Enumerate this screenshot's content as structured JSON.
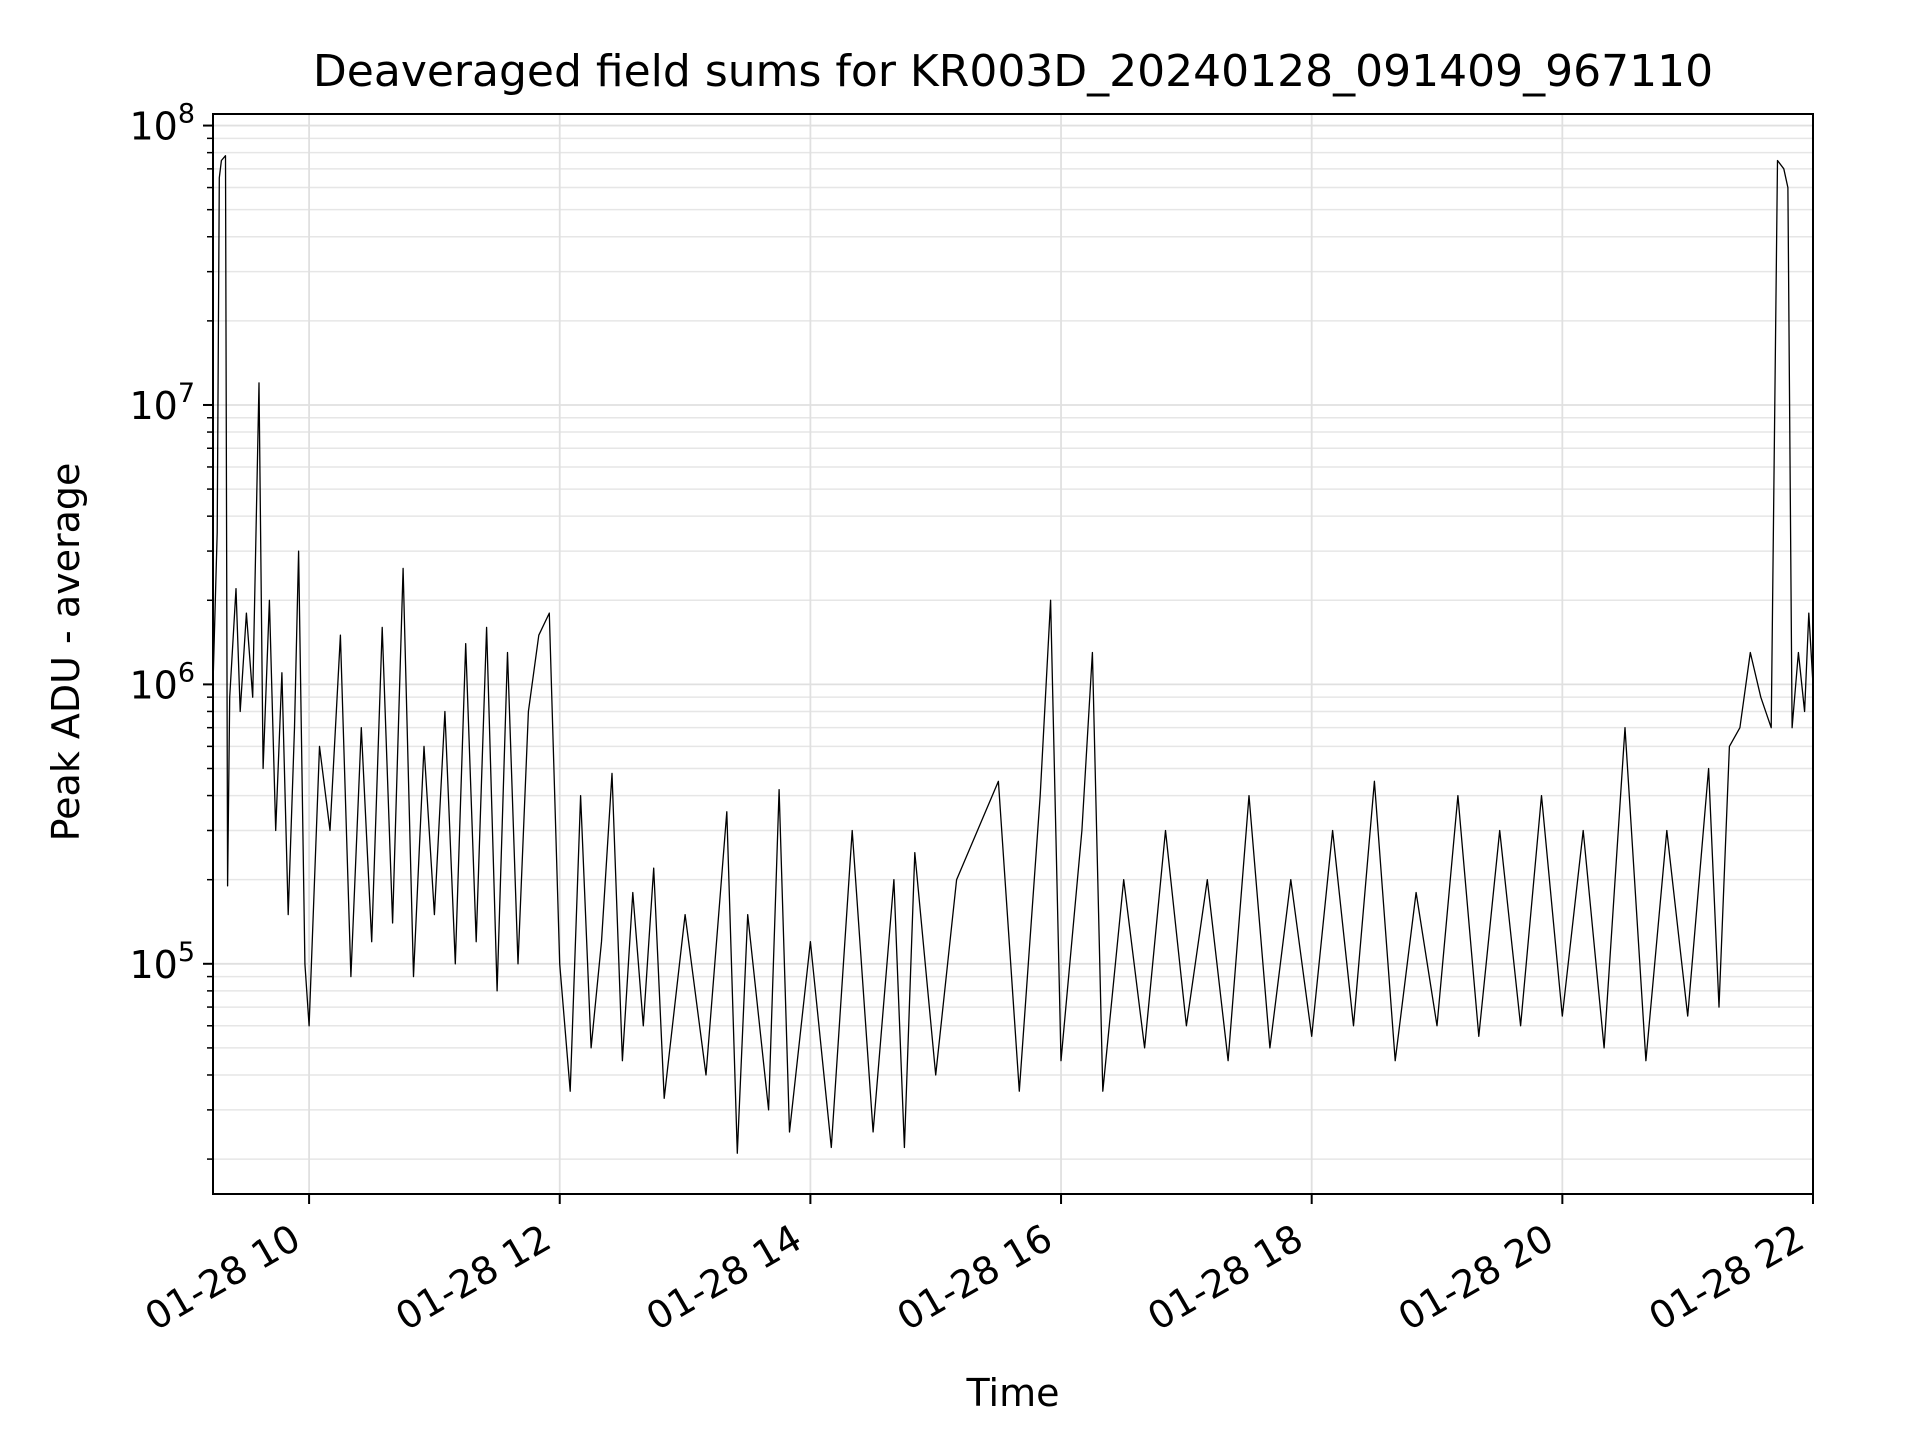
{
  "chart_data": {
    "type": "line",
    "title": "Deaveraged field sums for KR003D_20240128_091409_967110",
    "xlabel": "Time",
    "ylabel": "Peak ADU - average",
    "x_ticks": [
      "01-28 10",
      "01-28 12",
      "01-28 14",
      "01-28 16",
      "01-28 18",
      "01-28 20",
      "01-28 22"
    ],
    "y_ticks": [
      {
        "base": "10",
        "exp": "5"
      },
      {
        "base": "10",
        "exp": "6"
      },
      {
        "base": "10",
        "exp": "7"
      },
      {
        "base": "10",
        "exp": "8"
      }
    ],
    "xlim": [
      "2024-01-28 09:14",
      "2024-01-28 22:00"
    ],
    "ylim": [
      15000,
      110000000
    ],
    "yscale": "log",
    "grid": true,
    "series": [
      {
        "color": "#000000",
        "points": [
          [
            "09:14",
            1000000
          ],
          [
            "09:16",
            3500000
          ],
          [
            "09:17",
            65000000
          ],
          [
            "09:18",
            75000000
          ],
          [
            "09:20",
            78000000
          ],
          [
            "09:21",
            190000
          ],
          [
            "09:22",
            900000
          ],
          [
            "09:25",
            2200000
          ],
          [
            "09:27",
            800000
          ],
          [
            "09:30",
            1800000
          ],
          [
            "09:33",
            900000
          ],
          [
            "09:36",
            12000000
          ],
          [
            "09:38",
            500000
          ],
          [
            "09:41",
            2000000
          ],
          [
            "09:44",
            300000
          ],
          [
            "09:47",
            1100000
          ],
          [
            "09:50",
            150000
          ],
          [
            "09:53",
            700000
          ],
          [
            "09:55",
            3000000
          ],
          [
            "09:58",
            100000
          ],
          [
            "10:00",
            60000
          ],
          [
            "10:05",
            600000
          ],
          [
            "10:10",
            300000
          ],
          [
            "10:15",
            1500000
          ],
          [
            "10:20",
            90000
          ],
          [
            "10:25",
            700000
          ],
          [
            "10:30",
            120000
          ],
          [
            "10:35",
            1600000
          ],
          [
            "10:40",
            140000
          ],
          [
            "10:45",
            2600000
          ],
          [
            "10:50",
            90000
          ],
          [
            "10:55",
            600000
          ],
          [
            "11:00",
            150000
          ],
          [
            "11:05",
            800000
          ],
          [
            "11:10",
            100000
          ],
          [
            "11:15",
            1400000
          ],
          [
            "11:20",
            120000
          ],
          [
            "11:25",
            1600000
          ],
          [
            "11:30",
            80000
          ],
          [
            "11:35",
            1300000
          ],
          [
            "11:40",
            100000
          ],
          [
            "11:45",
            800000
          ],
          [
            "11:50",
            1500000
          ],
          [
            "11:55",
            1800000
          ],
          [
            "12:00",
            100000
          ],
          [
            "12:05",
            35000
          ],
          [
            "12:10",
            400000
          ],
          [
            "12:15",
            50000
          ],
          [
            "12:20",
            120000
          ],
          [
            "12:25",
            480000
          ],
          [
            "12:30",
            45000
          ],
          [
            "12:35",
            180000
          ],
          [
            "12:40",
            60000
          ],
          [
            "12:45",
            220000
          ],
          [
            "12:50",
            33000
          ],
          [
            "13:00",
            150000
          ],
          [
            "13:10",
            40000
          ],
          [
            "13:20",
            350000
          ],
          [
            "13:25",
            21000
          ],
          [
            "13:30",
            150000
          ],
          [
            "13:40",
            30000
          ],
          [
            "13:45",
            420000
          ],
          [
            "13:50",
            25000
          ],
          [
            "14:00",
            120000
          ],
          [
            "14:10",
            22000
          ],
          [
            "14:20",
            300000
          ],
          [
            "14:30",
            25000
          ],
          [
            "14:40",
            200000
          ],
          [
            "14:45",
            22000
          ],
          [
            "14:50",
            250000
          ],
          [
            "15:00",
            40000
          ],
          [
            "15:10",
            200000
          ],
          [
            "15:20",
            300000
          ],
          [
            "15:30",
            450000
          ],
          [
            "15:40",
            35000
          ],
          [
            "15:50",
            400000
          ],
          [
            "15:55",
            2000000
          ],
          [
            "16:00",
            45000
          ],
          [
            "16:10",
            300000
          ],
          [
            "16:15",
            1300000
          ],
          [
            "16:20",
            35000
          ],
          [
            "16:30",
            200000
          ],
          [
            "16:40",
            50000
          ],
          [
            "16:50",
            300000
          ],
          [
            "17:00",
            60000
          ],
          [
            "17:10",
            200000
          ],
          [
            "17:20",
            45000
          ],
          [
            "17:30",
            400000
          ],
          [
            "17:40",
            50000
          ],
          [
            "17:50",
            200000
          ],
          [
            "18:00",
            55000
          ],
          [
            "18:10",
            300000
          ],
          [
            "18:20",
            60000
          ],
          [
            "18:30",
            450000
          ],
          [
            "18:40",
            45000
          ],
          [
            "18:50",
            180000
          ],
          [
            "19:00",
            60000
          ],
          [
            "19:10",
            400000
          ],
          [
            "19:20",
            55000
          ],
          [
            "19:30",
            300000
          ],
          [
            "19:40",
            60000
          ],
          [
            "19:50",
            400000
          ],
          [
            "20:00",
            65000
          ],
          [
            "20:10",
            300000
          ],
          [
            "20:20",
            50000
          ],
          [
            "20:30",
            700000
          ],
          [
            "20:40",
            45000
          ],
          [
            "20:50",
            300000
          ],
          [
            "21:00",
            65000
          ],
          [
            "21:10",
            500000
          ],
          [
            "21:15",
            70000
          ],
          [
            "21:20",
            600000
          ],
          [
            "21:25",
            700000
          ],
          [
            "21:30",
            1300000
          ],
          [
            "21:35",
            900000
          ],
          [
            "21:40",
            700000
          ],
          [
            "21:43",
            75000000
          ],
          [
            "21:46",
            70000000
          ],
          [
            "21:48",
            60000000
          ],
          [
            "21:50",
            700000
          ],
          [
            "21:53",
            1300000
          ],
          [
            "21:56",
            800000
          ],
          [
            "21:58",
            1800000
          ],
          [
            "22:00",
            1000000
          ]
        ]
      }
    ]
  }
}
